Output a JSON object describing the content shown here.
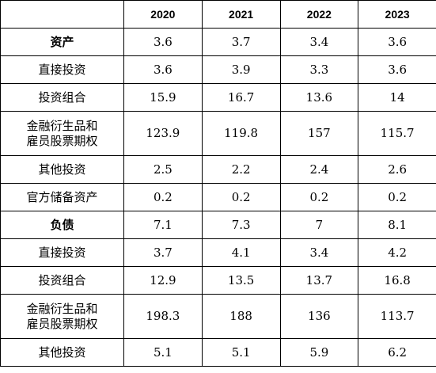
{
  "header": {
    "label": "",
    "years": [
      "2020",
      "2021",
      "2022",
      "2023"
    ]
  },
  "rows": [
    {
      "label": "资产",
      "bold": true,
      "values": [
        "3.6",
        "3.7",
        "3.4",
        "3.6"
      ]
    },
    {
      "label": "直接投资",
      "bold": false,
      "values": [
        "3.6",
        "3.9",
        "3.3",
        "3.6"
      ]
    },
    {
      "label": "投资组合",
      "bold": false,
      "values": [
        "15.9",
        "16.7",
        "13.6",
        "14"
      ]
    },
    {
      "label_lines": [
        "金融衍生品和",
        "雇员股票期权"
      ],
      "bold": false,
      "values": [
        "123.9",
        "119.8",
        "157",
        "115.7"
      ]
    },
    {
      "label": "其他投资",
      "bold": false,
      "values": [
        "2.5",
        "2.2",
        "2.4",
        "2.6"
      ]
    },
    {
      "label": "官方储备资产",
      "bold": false,
      "values": [
        "0.2",
        "0.2",
        "0.2",
        "0.2"
      ]
    },
    {
      "label": "负债",
      "bold": true,
      "values": [
        "7.1",
        "7.3",
        "7",
        "8.1"
      ]
    },
    {
      "label": "直接投资",
      "bold": false,
      "values": [
        "3.7",
        "4.1",
        "3.4",
        "4.2"
      ]
    },
    {
      "label": "投资组合",
      "bold": false,
      "values": [
        "12.9",
        "13.5",
        "13.7",
        "16.8"
      ]
    },
    {
      "label_lines": [
        "金融衍生品和",
        "雇员股票期权"
      ],
      "bold": false,
      "values": [
        "198.3",
        "188",
        "136",
        "113.7"
      ]
    },
    {
      "label": "其他投资",
      "bold": false,
      "values": [
        "5.1",
        "5.1",
        "5.9",
        "6.2"
      ]
    }
  ]
}
